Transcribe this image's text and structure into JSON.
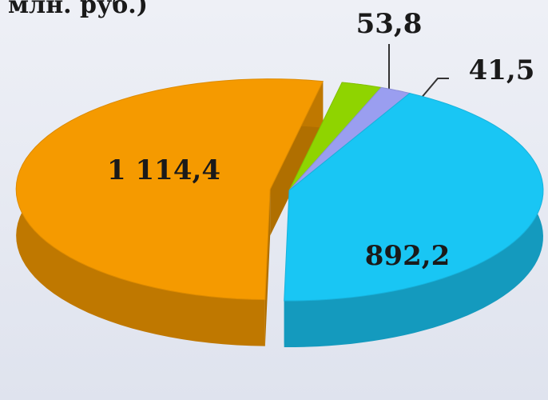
{
  "chart_data": {
    "type": "pie",
    "title": "млн. руб.)",
    "categories": [
      null,
      null,
      null,
      null
    ],
    "values": [
      53.8,
      41.5,
      892.2,
      1114.4
    ],
    "value_labels": [
      "53,8",
      "41,5",
      "892,2",
      "1 114,4"
    ],
    "colors": [
      "#8fd400",
      "#9a9ef0",
      "#19c6f4",
      "#f59a00"
    ]
  }
}
